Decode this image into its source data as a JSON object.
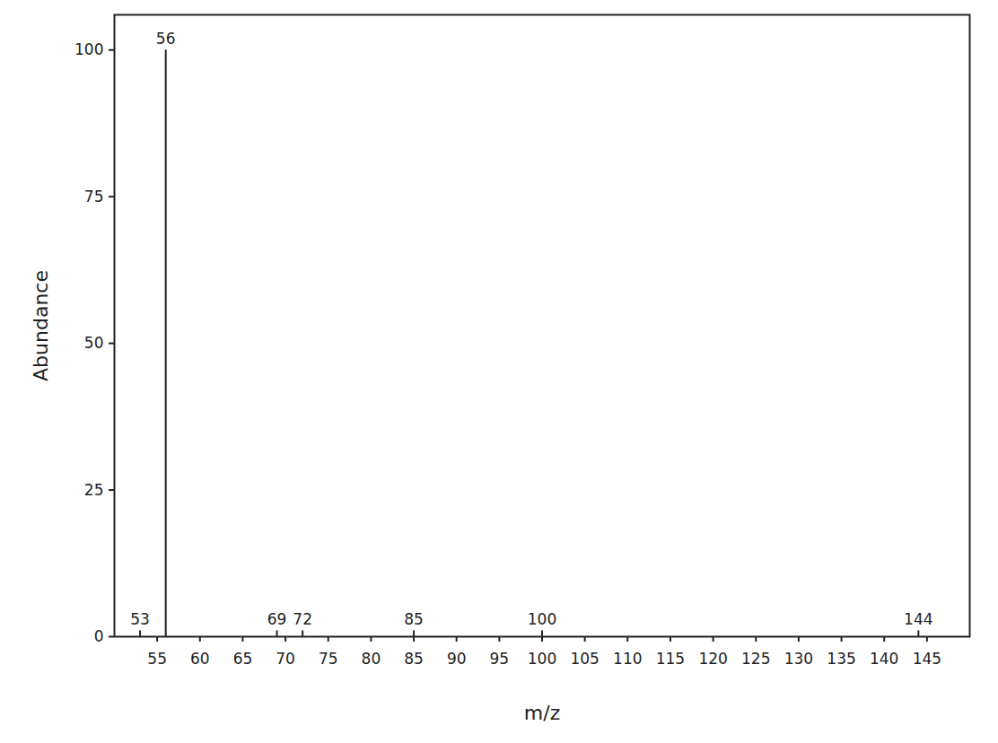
{
  "chart_data": {
    "type": "stem",
    "x_label": "m/z",
    "y_label": "Abundance",
    "x": [
      53,
      56,
      69,
      72,
      85,
      100,
      144
    ],
    "values": [
      1,
      100,
      1,
      1,
      1,
      1,
      1
    ],
    "color": "#222222",
    "data_labels": true,
    "xlim": [
      50,
      150
    ],
    "xticks": [
      55,
      60,
      65,
      70,
      75,
      80,
      85,
      90,
      95,
      100,
      105,
      110,
      115,
      120,
      125,
      130,
      135,
      140,
      145
    ],
    "ylim": [
      0,
      106
    ],
    "yticks": [
      0,
      25,
      50,
      75,
      100
    ],
    "grid": false
  }
}
